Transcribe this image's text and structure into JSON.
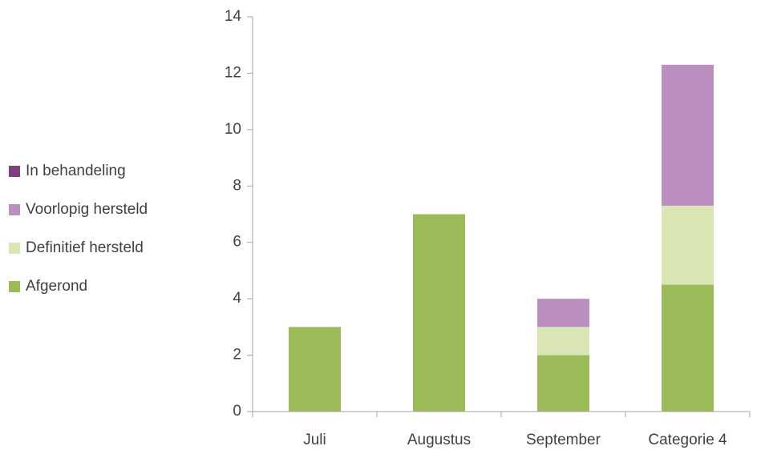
{
  "chart_data": {
    "type": "bar",
    "stacked": true,
    "categories": [
      "Juli",
      "Augustus",
      "September",
      "Categorie 4"
    ],
    "series": [
      {
        "name": "Afgerond",
        "color": "#9bbb59",
        "values": [
          3,
          7,
          2,
          4.5
        ]
      },
      {
        "name": "Definitief hersteld",
        "color": "#d9e6b4",
        "values": [
          0,
          0,
          1,
          2.8
        ]
      },
      {
        "name": "Voorlopig hersteld",
        "color": "#bb8fbf",
        "values": [
          0,
          0,
          1,
          5
        ]
      },
      {
        "name": "In behandeling",
        "color": "#7f3f7f",
        "values": [
          0,
          0,
          0,
          0
        ]
      }
    ],
    "ylim": [
      0,
      14
    ],
    "yticks": [
      0,
      2,
      4,
      6,
      8,
      10,
      12,
      14
    ],
    "grid": false,
    "legend": "left"
  }
}
